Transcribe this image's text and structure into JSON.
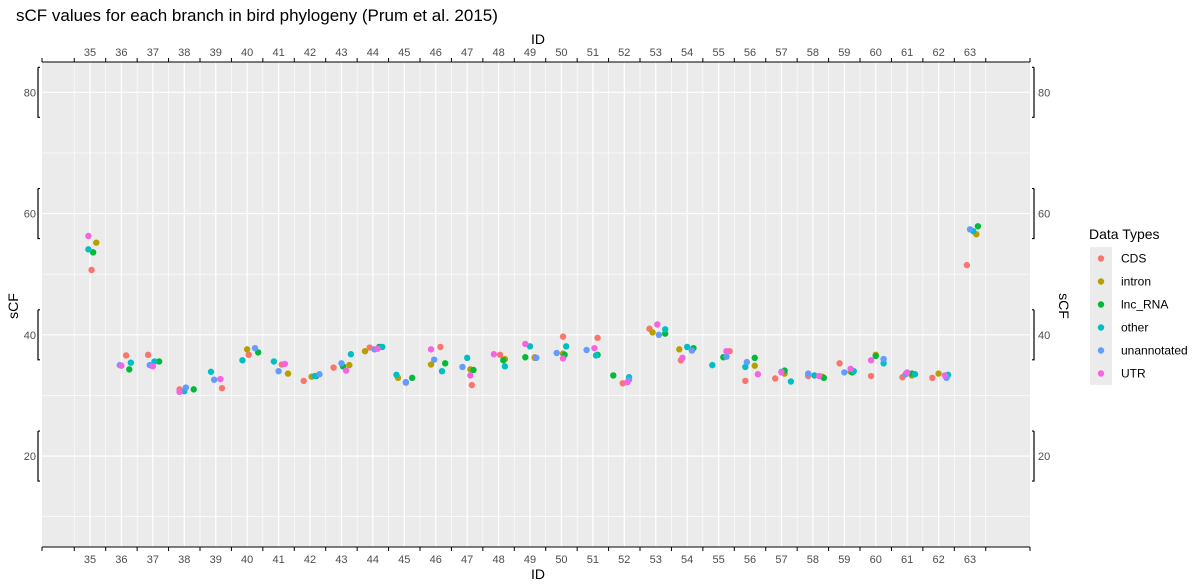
{
  "chart_data": {
    "type": "scatter",
    "title": "sCF values for each branch in bird phylogeny (Prum et al. 2015)",
    "xlabel": "ID",
    "ylabel": "sCF",
    "xlim": [
      34.5,
      63.5
    ],
    "ylim": [
      5,
      85
    ],
    "yticks": [
      20,
      40,
      60,
      80
    ],
    "categories": [
      "35",
      "36",
      "37",
      "38",
      "39",
      "40",
      "41",
      "42",
      "43",
      "44",
      "45",
      "46",
      "47",
      "48",
      "49",
      "50",
      "51",
      "52",
      "53",
      "54",
      "55",
      "56",
      "57",
      "58",
      "59",
      "60",
      "61",
      "62",
      "63"
    ],
    "legend": {
      "title": "Data Types",
      "position": "right",
      "entries": [
        "CDS",
        "intron",
        "lnc_RNA",
        "other",
        "unannotated",
        "UTR"
      ]
    },
    "grid": true,
    "series": [
      {
        "name": "CDS",
        "color": "#F8766D",
        "points": [
          [
            35.05,
            50.7
          ],
          [
            36.15,
            36.6
          ],
          [
            36.85,
            36.7
          ],
          [
            37.85,
            31.0
          ],
          [
            39.2,
            31.2
          ],
          [
            40.05,
            36.7
          ],
          [
            41.1,
            35.1
          ],
          [
            41.8,
            32.4
          ],
          [
            42.75,
            34.6
          ],
          [
            43.9,
            37.9
          ],
          [
            45.05,
            32.1
          ],
          [
            46.15,
            38.0
          ],
          [
            47.15,
            31.7
          ],
          [
            48.05,
            36.7
          ],
          [
            49.15,
            36.3
          ],
          [
            50.05,
            39.7
          ],
          [
            51.15,
            39.5
          ],
          [
            51.95,
            32.0
          ],
          [
            52.8,
            41.0
          ],
          [
            53.8,
            35.8
          ],
          [
            55.35,
            37.3
          ],
          [
            55.85,
            32.4
          ],
          [
            56.8,
            32.8
          ],
          [
            57.85,
            33.2
          ],
          [
            58.85,
            35.3
          ],
          [
            59.85,
            33.2
          ],
          [
            60.85,
            33.0
          ],
          [
            61.8,
            32.9
          ],
          [
            62.9,
            51.5
          ]
        ]
      },
      {
        "name": "intron",
        "color": "#B79F00",
        "points": [
          [
            35.2,
            55.2
          ],
          [
            40.0,
            37.6
          ],
          [
            41.3,
            33.6
          ],
          [
            42.05,
            33.1
          ],
          [
            43.25,
            35.0
          ],
          [
            43.75,
            37.3
          ],
          [
            44.8,
            32.9
          ],
          [
            45.85,
            35.1
          ],
          [
            47.1,
            34.3
          ],
          [
            48.2,
            36.0
          ],
          [
            49.15,
            36.2
          ],
          [
            50.05,
            36.9
          ],
          [
            52.9,
            40.4
          ],
          [
            53.75,
            37.6
          ],
          [
            56.15,
            34.9
          ],
          [
            57.1,
            33.6
          ],
          [
            58.3,
            33.1
          ],
          [
            59.2,
            33.9
          ],
          [
            60.0,
            36.7
          ],
          [
            61.15,
            33.3
          ],
          [
            62.0,
            33.6
          ],
          [
            63.2,
            56.6
          ]
        ]
      },
      {
        "name": "lnc_RNA",
        "color": "#00BA38",
        "points": [
          [
            35.1,
            53.6
          ],
          [
            36.25,
            34.3
          ],
          [
            37.2,
            35.6
          ],
          [
            38.3,
            31.0
          ],
          [
            40.35,
            37.1
          ],
          [
            42.2,
            33.2
          ],
          [
            43.05,
            34.8
          ],
          [
            44.2,
            38.0
          ],
          [
            45.25,
            32.9
          ],
          [
            46.3,
            35.3
          ],
          [
            47.2,
            34.2
          ],
          [
            48.15,
            35.8
          ],
          [
            48.85,
            36.3
          ],
          [
            50.1,
            36.7
          ],
          [
            51.15,
            36.7
          ],
          [
            51.65,
            33.3
          ],
          [
            53.3,
            40.2
          ],
          [
            54.2,
            37.8
          ],
          [
            55.15,
            36.3
          ],
          [
            56.15,
            36.2
          ],
          [
            57.1,
            34.1
          ],
          [
            58.35,
            32.9
          ],
          [
            59.25,
            33.8
          ],
          [
            60.0,
            36.5
          ],
          [
            61.15,
            33.6
          ],
          [
            63.25,
            57.9
          ]
        ]
      },
      {
        "name": "other",
        "color": "#00BFC4",
        "points": [
          [
            34.95,
            54.1
          ],
          [
            36.3,
            35.4
          ],
          [
            37.05,
            35.6
          ],
          [
            38.0,
            30.7
          ],
          [
            38.85,
            33.9
          ],
          [
            39.85,
            35.8
          ],
          [
            40.85,
            35.6
          ],
          [
            42.15,
            33.2
          ],
          [
            43.3,
            36.8
          ],
          [
            44.3,
            38.0
          ],
          [
            44.75,
            33.4
          ],
          [
            46.2,
            34.0
          ],
          [
            47.0,
            36.2
          ],
          [
            48.2,
            34.8
          ],
          [
            49.0,
            38.1
          ],
          [
            50.15,
            38.1
          ],
          [
            51.1,
            36.6
          ],
          [
            52.15,
            33.0
          ],
          [
            53.3,
            40.9
          ],
          [
            54.0,
            38.0
          ],
          [
            54.8,
            35.0
          ],
          [
            55.85,
            34.7
          ],
          [
            57.3,
            32.3
          ],
          [
            58.05,
            33.3
          ],
          [
            59.3,
            34.0
          ],
          [
            60.25,
            35.3
          ],
          [
            61.25,
            33.5
          ],
          [
            62.3,
            33.4
          ],
          [
            63.1,
            57.1
          ]
        ]
      },
      {
        "name": "unannotated",
        "color": "#619CFF",
        "points": [
          [
            35.95,
            35.0
          ],
          [
            36.9,
            35.0
          ],
          [
            38.05,
            31.3
          ],
          [
            38.95,
            32.6
          ],
          [
            40.25,
            37.8
          ],
          [
            41.0,
            34.0
          ],
          [
            42.3,
            33.5
          ],
          [
            43.0,
            35.3
          ],
          [
            44.05,
            37.6
          ],
          [
            45.05,
            32.2
          ],
          [
            45.95,
            35.9
          ],
          [
            46.85,
            34.7
          ],
          [
            49.2,
            36.2
          ],
          [
            49.85,
            37.0
          ],
          [
            50.8,
            37.5
          ],
          [
            52.15,
            32.6
          ],
          [
            53.1,
            40.0
          ],
          [
            54.15,
            37.4
          ],
          [
            55.25,
            36.4
          ],
          [
            55.9,
            35.5
          ],
          [
            57.0,
            33.9
          ],
          [
            57.85,
            33.6
          ],
          [
            59.0,
            33.8
          ],
          [
            60.25,
            36.0
          ],
          [
            60.95,
            33.5
          ],
          [
            62.25,
            32.9
          ],
          [
            63.0,
            57.4
          ]
        ]
      },
      {
        "name": "UTR",
        "color": "#F564E3",
        "points": [
          [
            34.95,
            56.3
          ],
          [
            36.0,
            34.9
          ],
          [
            37.0,
            34.8
          ],
          [
            37.85,
            30.6
          ],
          [
            39.15,
            32.7
          ],
          [
            41.2,
            35.2
          ],
          [
            43.15,
            34.1
          ],
          [
            44.15,
            37.7
          ],
          [
            45.85,
            37.6
          ],
          [
            47.1,
            33.3
          ],
          [
            47.85,
            36.8
          ],
          [
            48.85,
            38.5
          ],
          [
            50.05,
            36.1
          ],
          [
            51.05,
            37.8
          ],
          [
            52.1,
            32.2
          ],
          [
            53.05,
            41.7
          ],
          [
            53.85,
            36.2
          ],
          [
            55.25,
            37.3
          ],
          [
            56.25,
            33.5
          ],
          [
            57.0,
            33.8
          ],
          [
            58.2,
            33.2
          ],
          [
            59.2,
            34.4
          ],
          [
            59.85,
            35.8
          ],
          [
            61.0,
            33.8
          ],
          [
            62.2,
            33.3
          ]
        ]
      }
    ]
  }
}
